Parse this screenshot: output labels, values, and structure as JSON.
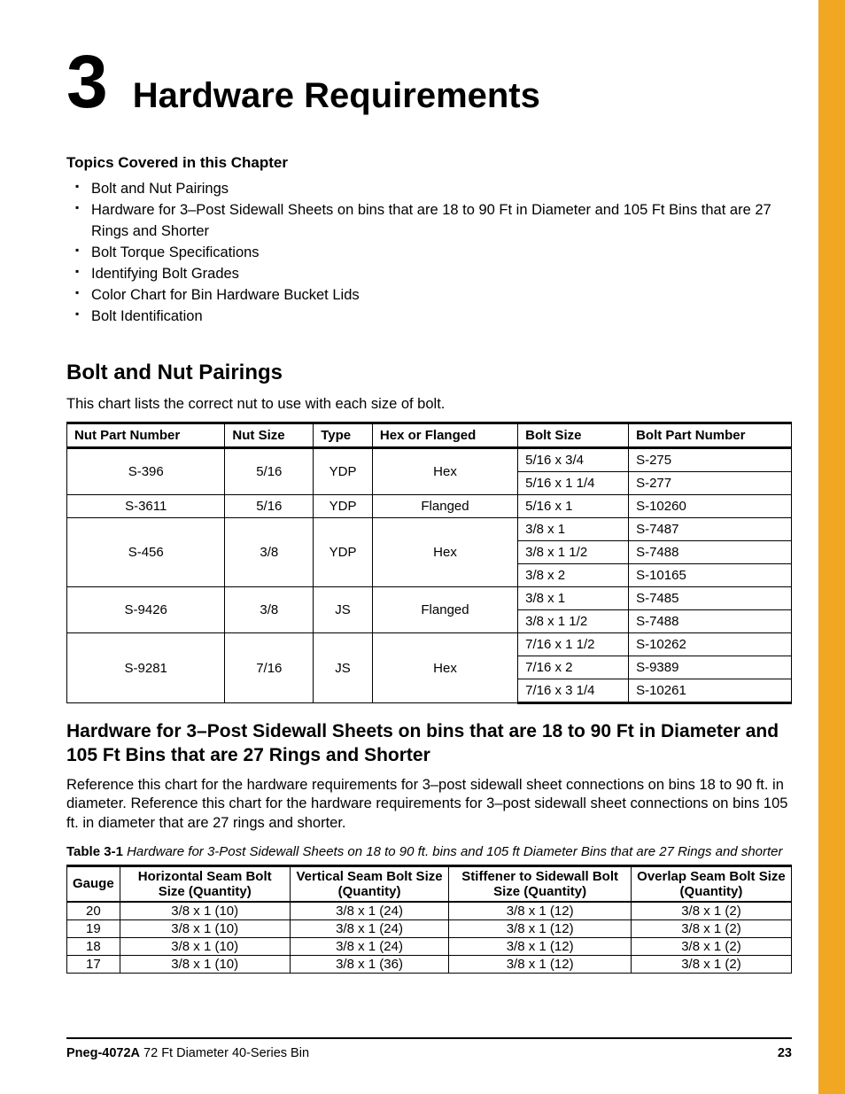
{
  "chapter": {
    "number": "3",
    "title": "Hardware Requirements"
  },
  "topics": {
    "heading": "Topics Covered in this Chapter",
    "items": [
      "Bolt and Nut Pairings",
      "Hardware for 3–Post Sidewall Sheets on bins that are 18 to 90 Ft in Diameter and 105 Ft Bins that are 27 Rings and Shorter",
      "Bolt Torque Specifications",
      "Identifying Bolt Grades",
      "Color Chart for Bin Hardware Bucket Lids",
      "Bolt Identification"
    ]
  },
  "section1": {
    "title": "Bolt and Nut Pairings",
    "intro": "This chart lists the correct nut to use with each size of bolt.",
    "headers": [
      "Nut Part Number",
      "Nut Size",
      "Type",
      "Hex or Flanged",
      "Bolt Size",
      "Bolt Part Number"
    ],
    "groups": [
      {
        "nut_part": "S-396",
        "nut_size": "5/16",
        "type": "YDP",
        "hex": "Hex",
        "bolts": [
          {
            "size": "5/16 x 3/4",
            "part": "S-275"
          },
          {
            "size": "5/16 x 1 1/4",
            "part": "S-277"
          }
        ]
      },
      {
        "nut_part": "S-3611",
        "nut_size": "5/16",
        "type": "YDP",
        "hex": "Flanged",
        "bolts": [
          {
            "size": "5/16 x 1",
            "part": "S-10260"
          }
        ]
      },
      {
        "nut_part": "S-456",
        "nut_size": "3/8",
        "type": "YDP",
        "hex": "Hex",
        "bolts": [
          {
            "size": "3/8 x 1",
            "part": "S-7487"
          },
          {
            "size": "3/8 x 1 1/2",
            "part": "S-7488"
          },
          {
            "size": "3/8 x 2",
            "part": "S-10165"
          }
        ]
      },
      {
        "nut_part": "S-9426",
        "nut_size": "3/8",
        "type": "JS",
        "hex": "Flanged",
        "bolts": [
          {
            "size": "3/8 x 1",
            "part": "S-7485"
          },
          {
            "size": "3/8 x 1 1/2",
            "part": "S-7488"
          }
        ]
      },
      {
        "nut_part": "S-9281",
        "nut_size": "7/16",
        "type": "JS",
        "hex": "Hex",
        "bolts": [
          {
            "size": "7/16 x 1 1/2",
            "part": "S-10262"
          },
          {
            "size": "7/16 x 2",
            "part": "S-9389"
          },
          {
            "size": "7/16 x 3 1/4",
            "part": "S-10261"
          }
        ]
      }
    ]
  },
  "section2": {
    "title": "Hardware for 3–Post Sidewall Sheets on bins that are 18 to 90 Ft in Diameter and 105 Ft Bins that are 27 Rings and Shorter",
    "para": "Reference this chart for the hardware requirements for 3–post sidewall sheet connections on bins 18 to 90 ft. in diameter. Reference this chart for the hardware requirements for 3–post sidewall sheet connections on bins 105 ft. in diameter that are 27 rings and shorter.",
    "caption_label": "Table 3-1",
    "caption_text": "Hardware for 3-Post Sidewall Sheets on 18 to 90 ft. bins and 105 ft Diameter Bins that are 27 Rings and shorter",
    "headers": [
      "Gauge",
      "Horizontal Seam Bolt Size (Quantity)",
      "Vertical Seam Bolt Size (Quantity)",
      "Stiffener to Sidewall Bolt Size (Quantity)",
      "Overlap Seam Bolt Size (Quantity)"
    ],
    "rows": [
      [
        "20",
        "3/8 x 1 (10)",
        "3/8 x 1 (24)",
        "3/8 x 1 (12)",
        "3/8 x 1 (2)"
      ],
      [
        "19",
        "3/8 x 1 (10)",
        "3/8 x 1 (24)",
        "3/8 x 1 (12)",
        "3/8 x 1 (2)"
      ],
      [
        "18",
        "3/8 x 1 (10)",
        "3/8 x 1 (24)",
        "3/8 x 1 (12)",
        "3/8 x 1 (2)"
      ],
      [
        "17",
        "3/8 x 1 (10)",
        "3/8 x 1 (36)",
        "3/8 x 1 (12)",
        "3/8 x 1 (2)"
      ]
    ]
  },
  "footer": {
    "doc_id": "Pneg-4072A",
    "doc_title": "72 Ft Diameter 40-Series Bin",
    "page": "23"
  },
  "colors": {
    "accent": "#f2a722",
    "text": "#000000",
    "background": "#ffffff",
    "border": "#000000"
  }
}
